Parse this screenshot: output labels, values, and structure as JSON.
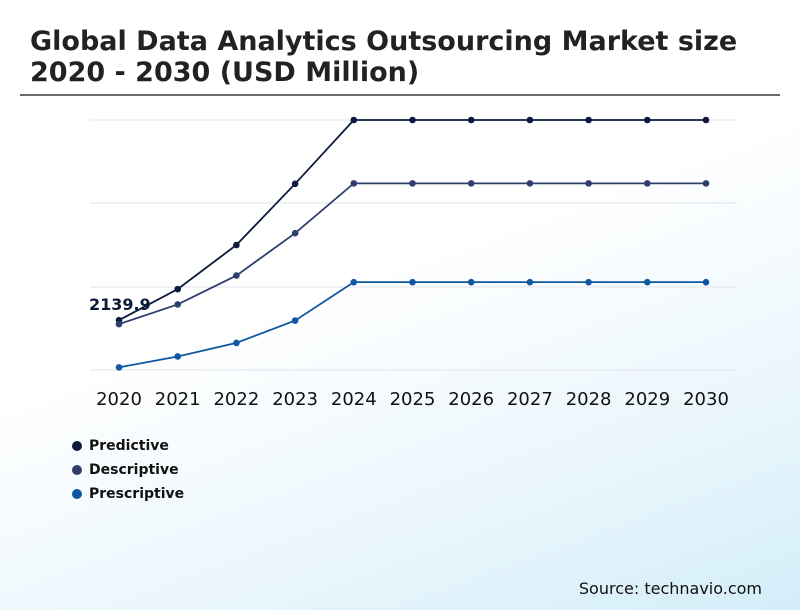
{
  "title": "Global Data Analytics Outsourcing Market size 2020 - 2030 (USD Million)",
  "source": "Source: technavio.com",
  "colors": {
    "predictive": "#0b1a3d",
    "descriptive": "#2e3f6e",
    "prescriptive": "#0f57a0",
    "gridline": "#dfe3ea",
    "title_rule": "#6b6b6b"
  },
  "chart_data": {
    "type": "line",
    "title": "Global Data Analytics Outsourcing Market size 2020 - 2030 (USD Million)",
    "xlabel": "",
    "ylabel": "",
    "categories": [
      "2020",
      "2021",
      "2022",
      "2023",
      "2024",
      "2025",
      "2026",
      "2027",
      "2028",
      "2029",
      "2030"
    ],
    "ylim": [
      0,
      6900
    ],
    "grid": true,
    "legend_position": "bottom-left",
    "series": [
      {
        "name": "Predictive",
        "color": "#0b1a3d",
        "values": [
          2139.9,
          2850,
          3860,
          5260,
          6720,
          6720,
          6720,
          6720,
          6720,
          6720,
          6720
        ]
      },
      {
        "name": "Descriptive",
        "color": "#2e3f6e",
        "values": [
          2050,
          2500,
          3160,
          4130,
          5270,
          5270,
          5270,
          5270,
          5270,
          5270,
          5270
        ]
      },
      {
        "name": "Prescriptive",
        "color": "#0f57a0",
        "values": [
          1060,
          1310,
          1620,
          2130,
          3010,
          3010,
          3010,
          3010,
          3010,
          3010,
          3010
        ]
      }
    ],
    "annotations": [
      {
        "series": "Predictive",
        "category": "2020",
        "text": "2139.9"
      }
    ]
  }
}
